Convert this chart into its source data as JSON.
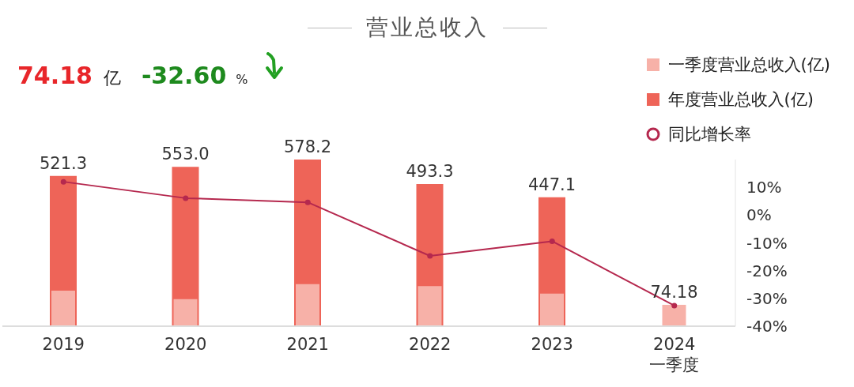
{
  "chart_data": {
    "type": "bar",
    "title": "营业总收入",
    "annotations": [
      "74.18",
      "亿",
      "-32.60",
      "%"
    ],
    "categories": [
      "2019",
      "2020",
      "2021",
      "2022",
      "2023",
      "2024\n一季度"
    ],
    "series": [
      {
        "name": "一季度营业总收入(亿)",
        "color": "#f7b1a8",
        "values": [
          123,
          94,
          146,
          139,
          113,
          74.18
        ],
        "value_labels": [
          null,
          null,
          null,
          null,
          null,
          "74.18"
        ]
      },
      {
        "name": "年度营业总收入(亿)",
        "color": "#ee6458",
        "values": [
          521.3,
          553.0,
          578.2,
          493.3,
          447.1,
          null
        ],
        "value_labels": [
          "521.3",
          "553.0",
          "578.2",
          "493.3",
          "447.1",
          null
        ]
      },
      {
        "name": "同比增长率",
        "type": "line",
        "axis": "y2",
        "color": "#b5284e",
        "values": [
          12.0,
          6.1,
          4.6,
          -14.7,
          -9.4,
          -32.6
        ]
      }
    ],
    "y2lim": [
      -40,
      20
    ],
    "y2ticks": [
      {
        "value": -40,
        "label": "-40%"
      },
      {
        "value": -30,
        "label": "-30%"
      },
      {
        "value": -20,
        "label": "-20%"
      },
      {
        "value": -10,
        "label": "-10%"
      },
      {
        "value": 0,
        "label": "0%"
      },
      {
        "value": 10,
        "label": "10%"
      }
    ],
    "marker": "circle",
    "grid": false,
    "legend": "top right"
  }
}
